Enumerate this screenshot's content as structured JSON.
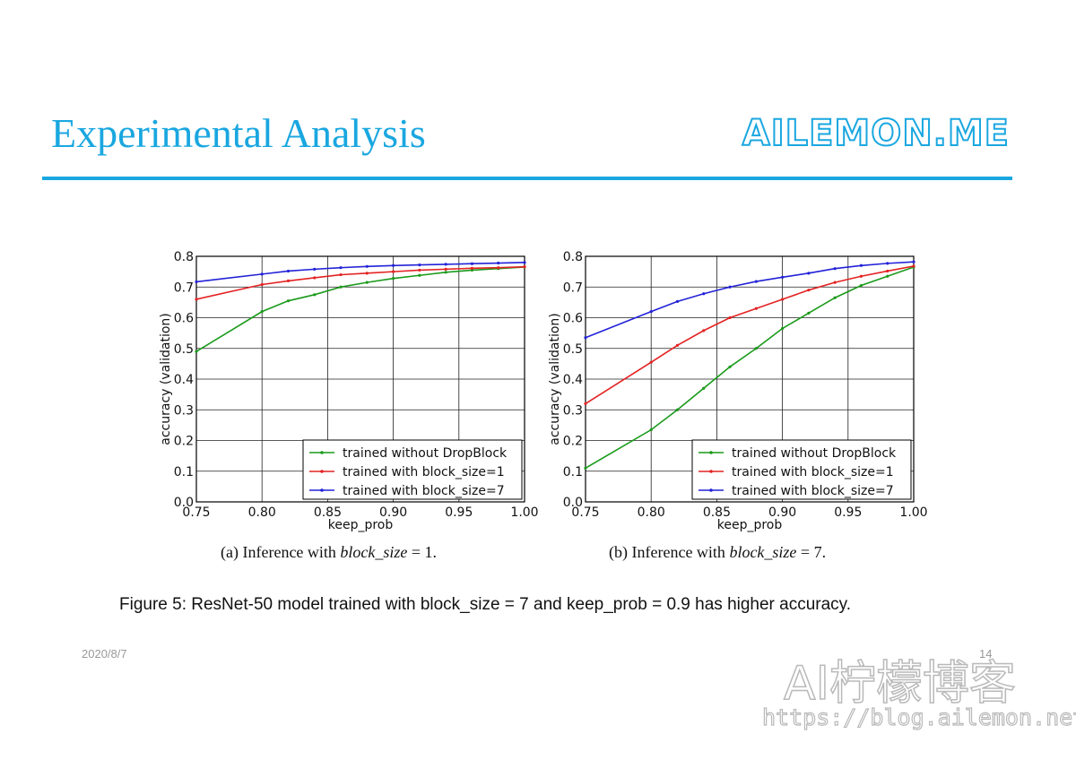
{
  "slide": {
    "title": "Experimental Analysis",
    "brand": "AILEMON.ME",
    "date": "2020/8/7",
    "page_number": "14",
    "accent_color": "#1aa7e0"
  },
  "figure_caption": "Figure 5: ResNet-50 model trained with block_size = 7 and keep_prob = 0.9 has higher accuracy.",
  "watermark": {
    "title": "AI柠檬博客",
    "url": "https://blog.ailemon.net/"
  },
  "chart_data": [
    {
      "type": "line",
      "caption_prefix": "(a) Inference with ",
      "caption_math": "block_size",
      "caption_suffix": " = 1.",
      "xlabel": "keep_prob",
      "ylabel": "accuracy (validation)",
      "xlim": [
        0.75,
        1.0
      ],
      "ylim": [
        0.0,
        0.8
      ],
      "xticks": [
        "0.75",
        "0.80",
        "0.85",
        "0.90",
        "0.95",
        "1.00"
      ],
      "yticks": [
        "0.0",
        "0.1",
        "0.2",
        "0.3",
        "0.4",
        "0.5",
        "0.6",
        "0.7",
        "0.8"
      ],
      "grid": true,
      "legend_position": "lower-right",
      "x": [
        0.75,
        0.8,
        0.82,
        0.84,
        0.86,
        0.88,
        0.9,
        0.92,
        0.94,
        0.96,
        0.98,
        1.0
      ],
      "series": [
        {
          "name": "trained without DropBlock",
          "color": "#1a9a1a",
          "values": [
            0.49,
            0.62,
            0.655,
            0.675,
            0.7,
            0.715,
            0.728,
            0.738,
            0.748,
            0.755,
            0.76,
            0.765
          ]
        },
        {
          "name": "trained with block_size=1",
          "color": "#e32222",
          "values": [
            0.66,
            0.708,
            0.72,
            0.73,
            0.74,
            0.745,
            0.75,
            0.755,
            0.758,
            0.761,
            0.763,
            0.766
          ]
        },
        {
          "name": "trained with block_size=7",
          "color": "#2222d8",
          "values": [
            0.717,
            0.742,
            0.752,
            0.758,
            0.763,
            0.767,
            0.77,
            0.772,
            0.774,
            0.776,
            0.778,
            0.78
          ]
        }
      ]
    },
    {
      "type": "line",
      "caption_prefix": "(b) Inference with ",
      "caption_math": "block_size",
      "caption_suffix": " = 7.",
      "xlabel": "keep_prob",
      "ylabel": "accuracy (validation)",
      "xlim": [
        0.75,
        1.0
      ],
      "ylim": [
        0.0,
        0.8
      ],
      "xticks": [
        "0.75",
        "0.80",
        "0.85",
        "0.90",
        "0.95",
        "1.00"
      ],
      "yticks": [
        "0.0",
        "0.1",
        "0.2",
        "0.3",
        "0.4",
        "0.5",
        "0.6",
        "0.7",
        "0.8"
      ],
      "grid": true,
      "legend_position": "lower-right",
      "x": [
        0.75,
        0.8,
        0.82,
        0.84,
        0.86,
        0.88,
        0.9,
        0.92,
        0.94,
        0.96,
        0.98,
        1.0
      ],
      "series": [
        {
          "name": "trained without DropBlock",
          "color": "#1a9a1a",
          "values": [
            0.11,
            0.235,
            0.3,
            0.37,
            0.44,
            0.5,
            0.565,
            0.615,
            0.665,
            0.705,
            0.735,
            0.765
          ]
        },
        {
          "name": "trained with block_size=1",
          "color": "#e32222",
          "values": [
            0.32,
            0.455,
            0.51,
            0.558,
            0.6,
            0.63,
            0.66,
            0.69,
            0.715,
            0.735,
            0.752,
            0.768
          ]
        },
        {
          "name": "trained with block_size=7",
          "color": "#2222d8",
          "values": [
            0.535,
            0.62,
            0.653,
            0.678,
            0.7,
            0.718,
            0.732,
            0.745,
            0.76,
            0.77,
            0.777,
            0.782
          ]
        }
      ]
    }
  ]
}
